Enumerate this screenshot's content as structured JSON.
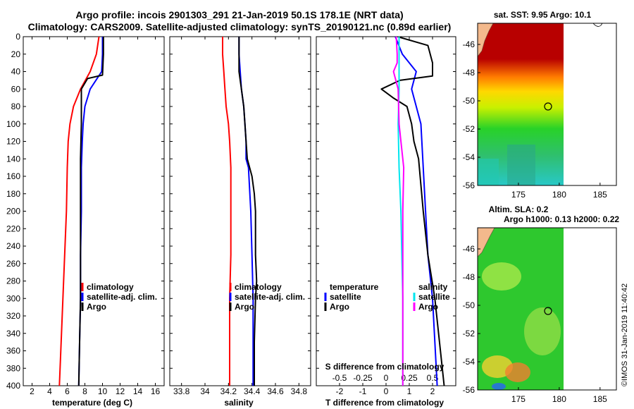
{
  "title": {
    "line1": "Argo profile: incois 2901303_291 21-Jan-2019 50.1S 178.1E (NRT data)",
    "line2": "Climatology: CARS2009. Satellite-adjusted climatology: synTS_20190121.nc (0.89d earlier)"
  },
  "colors": {
    "climatology": "#ff0000",
    "satellite": "#0000ff",
    "argo": "#000000",
    "satellite_s": "#00e5ee",
    "argo_s": "#ff00ff"
  },
  "credit": "©IMOS 31-Jan-2019 11:40:42",
  "chart_data": [
    {
      "type": "line",
      "title": "",
      "xlabel": "temperature (deg C)",
      "ylabel": "",
      "xlim": [
        1,
        17
      ],
      "ylim": [
        400,
        0
      ],
      "xticks": [
        "2",
        "4",
        "6",
        "8",
        "10",
        "12",
        "14",
        "16"
      ],
      "yticks": [
        "0",
        "20",
        "40",
        "60",
        "80",
        "100",
        "120",
        "140",
        "160",
        "180",
        "200",
        "220",
        "240",
        "260",
        "280",
        "300",
        "320",
        "340",
        "360",
        "380",
        "400"
      ],
      "legend": [
        "climatology",
        "satellite-adj. clim.",
        "Argo"
      ],
      "series": [
        {
          "name": "climatology",
          "color_key": "climatology",
          "depth": [
            0,
            20,
            40,
            60,
            80,
            100,
            120,
            150,
            200,
            250,
            300,
            350,
            400
          ],
          "values": [
            9.6,
            9.3,
            8.6,
            7.5,
            6.7,
            6.3,
            6.1,
            6.0,
            5.9,
            5.7,
            5.5,
            5.3,
            5.1
          ]
        },
        {
          "name": "satellite-adj. clim.",
          "color_key": "satellite",
          "depth": [
            0,
            20,
            40,
            60,
            80,
            100,
            120,
            150,
            200,
            250,
            300,
            350,
            400
          ],
          "values": [
            10.0,
            10.0,
            9.9,
            8.6,
            8.0,
            7.8,
            7.7,
            7.6,
            7.6,
            7.5,
            7.5,
            7.4,
            7.3
          ]
        },
        {
          "name": "Argo",
          "color_key": "argo",
          "depth": [
            0,
            20,
            44,
            48,
            60,
            80,
            100,
            140,
            200,
            250,
            300,
            350,
            400
          ],
          "values": [
            10.1,
            10.1,
            10.0,
            8.3,
            7.6,
            7.6,
            7.6,
            7.5,
            7.5,
            7.5,
            7.5,
            7.4,
            7.3
          ]
        }
      ]
    },
    {
      "type": "line",
      "title": "",
      "xlabel": "salinity",
      "ylabel": "",
      "xlim": [
        33.7,
        34.9
      ],
      "ylim": [
        400,
        0
      ],
      "xticks": [
        "33.8",
        "34",
        "34.2",
        "34.4",
        "34.6",
        "34.8"
      ],
      "legend": [
        "climatology",
        "satellite-adj. clim.",
        "Argo"
      ],
      "series": [
        {
          "name": "climatology",
          "color_key": "climatology",
          "depth": [
            0,
            20,
            40,
            60,
            80,
            100,
            120,
            150,
            200,
            250,
            300,
            350,
            400
          ],
          "values": [
            34.15,
            34.15,
            34.16,
            34.17,
            34.18,
            34.2,
            34.21,
            34.22,
            34.22,
            34.22,
            34.21,
            34.21,
            34.21
          ]
        },
        {
          "name": "satellite-adj. clim.",
          "color_key": "satellite",
          "depth": [
            0,
            20,
            40,
            60,
            80,
            100,
            120,
            140,
            150,
            200,
            250,
            300,
            350,
            400
          ],
          "values": [
            34.29,
            34.29,
            34.3,
            34.31,
            34.33,
            34.34,
            34.35,
            34.35,
            34.37,
            34.39,
            34.4,
            34.41,
            34.41,
            34.41
          ]
        },
        {
          "name": "Argo",
          "color_key": "argo",
          "depth": [
            0,
            20,
            40,
            60,
            80,
            100,
            120,
            140,
            160,
            180,
            200,
            250,
            280,
            300,
            350,
            400
          ],
          "values": [
            34.29,
            34.29,
            34.29,
            34.31,
            34.33,
            34.34,
            34.35,
            34.36,
            34.4,
            34.42,
            34.43,
            34.43,
            34.44,
            34.43,
            34.42,
            34.42
          ]
        }
      ]
    },
    {
      "type": "line",
      "title": "",
      "xlabel": "T difference from climatology",
      "x2label": "S difference from climatology",
      "ylabel": "",
      "xlim": [
        -3,
        3
      ],
      "x2lim": [
        -0.75,
        0.75
      ],
      "ylim": [
        400,
        0
      ],
      "xticks": [
        "-2",
        "-1",
        "0",
        "1",
        "2"
      ],
      "x2ticks": [
        "-0.5",
        "-0.25",
        "0",
        "0.25",
        "0.5"
      ],
      "legend_temperature": {
        "heading": "temperature",
        "items": [
          "satellite",
          "Argo"
        ]
      },
      "legend_salinity": {
        "heading": "salinity",
        "items": [
          "satellite",
          "Argo"
        ]
      },
      "series": [
        {
          "name": "T satellite",
          "axis": "T",
          "color_key": "satellite",
          "depth": [
            0,
            20,
            40,
            60,
            80,
            100,
            150,
            200,
            250,
            300,
            350,
            400
          ],
          "values": [
            0.4,
            0.7,
            1.3,
            1.1,
            1.3,
            1.5,
            1.6,
            1.7,
            1.8,
            2.0,
            2.1,
            2.2
          ]
        },
        {
          "name": "T Argo",
          "axis": "T",
          "color_key": "argo",
          "depth": [
            0,
            10,
            30,
            45,
            50,
            60,
            70,
            80,
            100,
            120,
            140,
            200,
            250,
            300,
            350,
            400
          ],
          "values": [
            0.5,
            1.8,
            2.0,
            2.0,
            0.6,
            -0.2,
            0.3,
            0.9,
            1.1,
            1.2,
            1.4,
            1.6,
            1.8,
            2.1,
            2.3,
            2.5
          ]
        },
        {
          "name": "S satellite",
          "axis": "S",
          "color_key": "satellite_s",
          "depth": [
            0,
            20,
            40,
            60,
            100,
            150,
            200,
            250,
            300,
            350,
            400
          ],
          "values": [
            0.14,
            0.14,
            0.14,
            0.14,
            0.13,
            0.14,
            0.16,
            0.17,
            0.18,
            0.18,
            0.18
          ]
        },
        {
          "name": "S Argo",
          "axis": "S",
          "color_key": "argo_s",
          "depth": [
            0,
            20,
            30,
            40,
            60,
            100,
            150,
            200,
            250,
            300,
            350,
            400
          ],
          "values": [
            0.11,
            0.12,
            0.12,
            0.08,
            0.13,
            0.14,
            0.19,
            0.18,
            0.18,
            0.18,
            0.18,
            0.18
          ]
        }
      ]
    },
    {
      "type": "heatmap",
      "title": "sat. SST: 9.95 Argo: 10.1",
      "xticks": [
        "175",
        "180",
        "185"
      ],
      "yticks": [
        "-46",
        "-48",
        "-50",
        "-52",
        "-54",
        "-56"
      ],
      "xlim": [
        170,
        187
      ],
      "ylim": [
        -56,
        -44.5
      ],
      "marker": {
        "lon": 178.1,
        "lat": -50.1
      }
    },
    {
      "type": "heatmap",
      "title": "Altim. SLA: 0.2",
      "subtitle": "Argo h1000: 0.13 h2000: 0.22",
      "xticks": [
        "175",
        "180",
        "185"
      ],
      "yticks": [
        "-46",
        "-48",
        "-50",
        "-52",
        "-54",
        "-56"
      ],
      "xlim": [
        170,
        187
      ],
      "ylim": [
        -56,
        -44.5
      ],
      "marker": {
        "lon": 178.1,
        "lat": -50.1
      }
    }
  ]
}
